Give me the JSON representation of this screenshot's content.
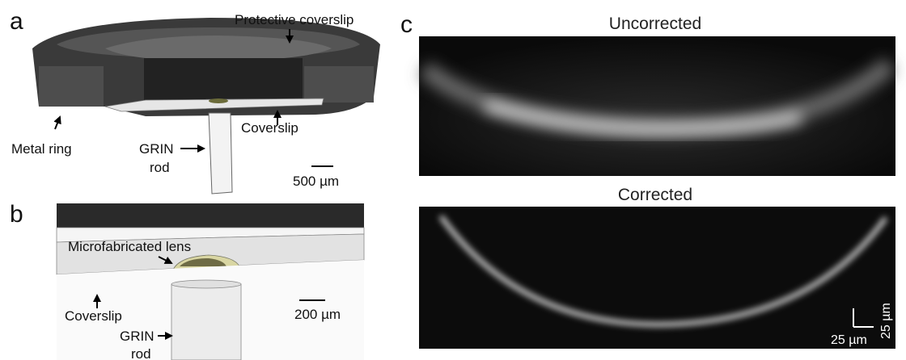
{
  "panels": [
    {
      "label": "a",
      "annotations": [
        "Protective coverslip",
        "Metal ring",
        "Coverslip",
        "GRIN",
        "rod"
      ],
      "scale_bar": "500 µm"
    },
    {
      "label": "b",
      "annotations": [
        "Microfabricated lens",
        "Coverslip",
        "GRIN",
        "rod"
      ],
      "scale_bar": "200 µm"
    },
    {
      "label": "c",
      "images": [
        "Uncorrected",
        "Corrected"
      ],
      "scale_bar_x": "25 µm",
      "scale_bar_y": "25 µm"
    }
  ]
}
